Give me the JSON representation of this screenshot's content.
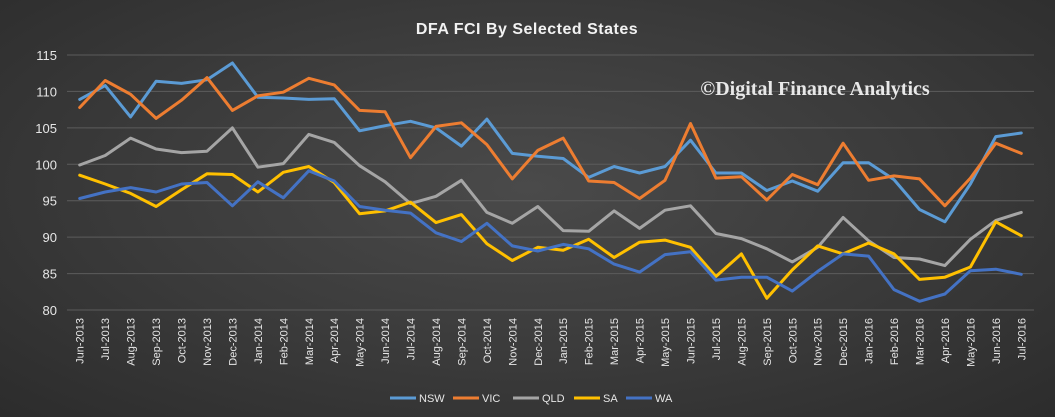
{
  "chart_data": {
    "type": "line",
    "title": "DFA FCI By Selected States",
    "watermark": "©Digital Finance Analytics",
    "xlabel": "",
    "ylabel": "",
    "ylim": [
      80,
      115
    ],
    "yticks": [
      80,
      85,
      90,
      95,
      100,
      105,
      110,
      115
    ],
    "grid": true,
    "legend_position": "bottom-center",
    "categories": [
      "Jun-2013",
      "Jul-2013",
      "Aug-2013",
      "Sep-2013",
      "Oct-2013",
      "Nov-2013",
      "Dec-2013",
      "Jan-2014",
      "Feb-2014",
      "Mar-2014",
      "Apr-2014",
      "May-2014",
      "Jun-2014",
      "Jul-2014",
      "Aug-2014",
      "Sep-2014",
      "Oct-2014",
      "Nov-2014",
      "Dec-2014",
      "Jan-2015",
      "Feb-2015",
      "Mar-2015",
      "Apr-2015",
      "May-2015",
      "Jun-2015",
      "Jul-2015",
      "Aug-2015",
      "Sep-2015",
      "Oct-2015",
      "Nov-2015",
      "Dec-2015",
      "Jan-2016",
      "Feb-2016",
      "Mar-2016",
      "Apr-2016",
      "May-2016",
      "Jun-2016",
      "Jul-2016"
    ],
    "series": [
      {
        "name": "NSW",
        "color": "#5b9bd5",
        "values": [
          108.9,
          110.8,
          106.5,
          111.4,
          111.1,
          111.6,
          113.9,
          109.2,
          109.1,
          108.9,
          109.0,
          104.6,
          105.3,
          105.9,
          105.0,
          102.5,
          106.2,
          101.5,
          101.1,
          100.8,
          98.2,
          99.7,
          98.8,
          99.7,
          103.3,
          98.8,
          98.8,
          96.4,
          97.7,
          96.3,
          100.2,
          100.2,
          97.9,
          93.8,
          92.1,
          97.3,
          103.8,
          104.3
        ]
      },
      {
        "name": "VIC",
        "color": "#ed7d31",
        "values": [
          107.8,
          111.5,
          109.6,
          106.3,
          108.8,
          111.9,
          107.4,
          109.4,
          109.9,
          111.8,
          110.9,
          107.4,
          107.2,
          100.9,
          105.2,
          105.7,
          102.7,
          98.0,
          101.9,
          103.6,
          97.7,
          97.5,
          95.3,
          97.8,
          105.6,
          98.1,
          98.3,
          95.1,
          98.6,
          97.2,
          102.9,
          97.8,
          98.4,
          98.0,
          94.3,
          98.1,
          102.9,
          101.5
        ]
      },
      {
        "name": "QLD",
        "color": "#a5a5a5",
        "values": [
          99.9,
          101.2,
          103.6,
          102.1,
          101.6,
          101.8,
          105.0,
          99.6,
          100.1,
          104.1,
          103.0,
          99.8,
          97.6,
          94.6,
          95.6,
          97.8,
          93.4,
          91.9,
          94.2,
          90.9,
          90.8,
          93.6,
          91.2,
          93.7,
          94.3,
          90.5,
          89.8,
          88.4,
          86.6,
          88.6,
          92.7,
          89.5,
          87.2,
          87.0,
          86.1,
          89.7,
          92.3,
          93.4
        ]
      },
      {
        "name": "SA",
        "color": "#ffc000",
        "values": [
          98.5,
          97.3,
          96.0,
          94.2,
          96.5,
          98.7,
          98.6,
          96.2,
          98.9,
          99.7,
          97.5,
          93.2,
          93.6,
          94.8,
          92.0,
          93.1,
          89.1,
          86.8,
          88.6,
          88.2,
          89.7,
          87.2,
          89.3,
          89.6,
          88.6,
          84.6,
          87.7,
          81.6,
          85.5,
          88.8,
          87.7,
          89.2,
          87.7,
          84.2,
          84.5,
          85.9,
          92.1,
          90.2
        ]
      },
      {
        "name": "WA",
        "color": "#4472c4",
        "values": [
          95.3,
          96.2,
          96.8,
          96.2,
          97.3,
          97.5,
          94.3,
          97.6,
          95.4,
          99.1,
          97.7,
          94.2,
          93.7,
          93.3,
          90.6,
          89.4,
          91.9,
          88.8,
          88.1,
          89.0,
          88.4,
          86.3,
          85.2,
          87.6,
          88.0,
          84.1,
          84.5,
          84.5,
          82.6,
          85.3,
          87.7,
          87.4,
          82.8,
          81.2,
          82.2,
          85.4,
          85.6,
          84.9
        ]
      }
    ]
  }
}
